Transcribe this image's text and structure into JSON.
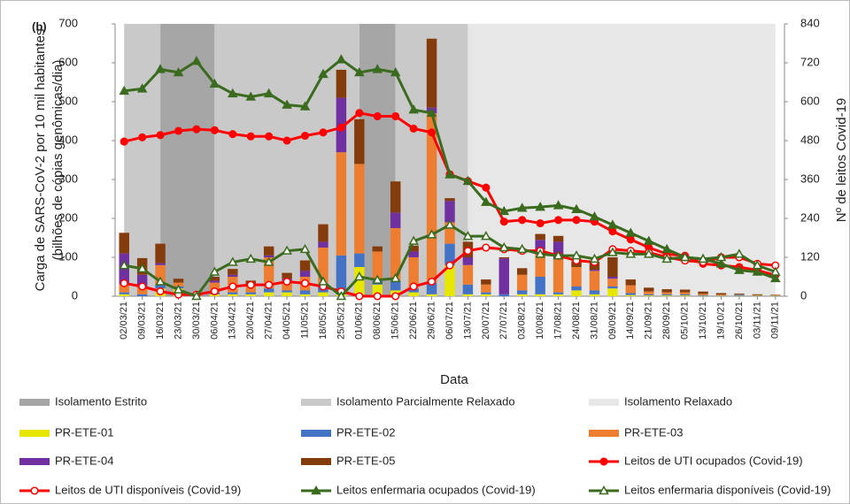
{
  "chart_data": {
    "type": "bar",
    "panel_label": "(b)",
    "xlabel": "Data",
    "ylabel": [
      "Carga de SARS-CoV-2 por 10 mil habitantes",
      "(bilhões de cópias genômicas/dia)"
    ],
    "y2label": "Nº de leitos Covid-19",
    "categories": [
      "02/03/21",
      "09/03/21",
      "16/03/21",
      "23/03/21",
      "30/03/21",
      "06/04/21",
      "13/04/21",
      "20/04/21",
      "27/04/21",
      "04/05/21",
      "11/05/21",
      "18/05/21",
      "25/05/21",
      "01/06/21",
      "08/06/21",
      "15/06/21",
      "22/06/21",
      "29/06/21",
      "06/07/21",
      "13/07/21",
      "20/07/21",
      "27/07/21",
      "03/08/21",
      "10/08/21",
      "17/08/21",
      "24/08/21",
      "31/08/21",
      "09/09/21",
      "14/09/21",
      "21/09/21",
      "28/09/21",
      "05/10/21",
      "13/10/21",
      "19/10/21",
      "26/10/21",
      "03/11/21",
      "09/11/21"
    ],
    "ylim": [
      0,
      700
    ],
    "yticks": [
      0,
      100,
      200,
      300,
      400,
      500,
      600,
      700
    ],
    "y2lim": [
      0,
      840
    ],
    "y2ticks": [
      0,
      120,
      240,
      360,
      480,
      600,
      720,
      840
    ],
    "phases": [
      {
        "name": "Isolamento Estrito",
        "color": "#a6a6a6",
        "spans": [
          [
            "16/03/21",
            "06/04/21"
          ],
          [
            "01/06/21",
            "15/06/21"
          ]
        ]
      },
      {
        "name": "Isolamento Parcialmente Relaxado",
        "color": "#c9c9c9",
        "spans": [
          [
            "02/03/21",
            "16/03/21"
          ],
          [
            "06/04/21",
            "01/06/21"
          ],
          [
            "15/06/21",
            "13/07/21"
          ]
        ]
      },
      {
        "name": "Isolamento Relaxado",
        "color": "#e7e7e7",
        "spans": [
          [
            "13/07/21",
            "09/11/21"
          ]
        ]
      }
    ],
    "series": [
      {
        "name": "PR-ETE-01",
        "type": "bar",
        "color": "#e6e600",
        "values": [
          5,
          0,
          20,
          20,
          0,
          5,
          5,
          5,
          10,
          10,
          5,
          10,
          5,
          75,
          30,
          15,
          10,
          5,
          80,
          5,
          5,
          0,
          5,
          5,
          5,
          15,
          5,
          20,
          3,
          2,
          2,
          2,
          1,
          1,
          1,
          1,
          1
        ]
      },
      {
        "name": "PR-ETE-02",
        "type": "bar",
        "color": "#4472c4",
        "values": [
          5,
          5,
          10,
          5,
          0,
          5,
          5,
          5,
          10,
          5,
          10,
          20,
          100,
          35,
          10,
          25,
          10,
          30,
          55,
          25,
          5,
          5,
          10,
          45,
          5,
          10,
          10,
          5,
          5,
          3,
          3,
          3,
          2,
          1,
          3,
          1,
          1
        ]
      },
      {
        "name": "PR-ETE-03",
        "type": "bar",
        "color": "#ed7d31",
        "values": [
          20,
          20,
          50,
          10,
          3,
          25,
          40,
          20,
          80,
          25,
          35,
          95,
          265,
          230,
          75,
          135,
          80,
          435,
          55,
          50,
          20,
          0,
          40,
          70,
          85,
          50,
          50,
          20,
          20,
          7,
          5,
          5,
          3,
          2,
          1,
          1,
          1
        ]
      },
      {
        "name": "PR-ETE-04",
        "type": "bar",
        "color": "#7030a0",
        "values": [
          80,
          30,
          5,
          0,
          0,
          5,
          5,
          0,
          5,
          5,
          15,
          15,
          140,
          0,
          0,
          40,
          15,
          15,
          55,
          20,
          0,
          92,
          0,
          25,
          45,
          0,
          3,
          5,
          0,
          0,
          0,
          0,
          0,
          0,
          0,
          0,
          0
        ]
      },
      {
        "name": "PR-ETE-05",
        "type": "bar",
        "color": "#843c0c",
        "values": [
          53,
          43,
          50,
          10,
          2,
          10,
          15,
          10,
          23,
          15,
          27,
          45,
          72,
          115,
          13,
          80,
          15,
          177,
          7,
          40,
          13,
          3,
          17,
          15,
          15,
          15,
          20,
          50,
          15,
          10,
          8,
          7,
          6,
          4,
          2,
          2,
          1
        ]
      },
      {
        "name": "Leitos de UTI ocupados (Covid-19)",
        "type": "line",
        "axis": "y2",
        "color": "#ff0000",
        "marker": "circle",
        "marker_filled": true,
        "values": [
          477,
          490,
          497,
          510,
          515,
          512,
          500,
          493,
          493,
          480,
          495,
          505,
          520,
          565,
          555,
          555,
          517,
          505,
          376,
          355,
          335,
          230,
          235,
          225,
          235,
          235,
          230,
          200,
          175,
          150,
          130,
          125,
          100,
          95,
          90,
          80,
          65
        ]
      },
      {
        "name": "Leitos de UTI disponíveis (Covid-19)",
        "type": "line",
        "axis": "y2",
        "color": "#ff0000",
        "marker": "circle",
        "marker_filled": false,
        "values": [
          40,
          30,
          15,
          5,
          5,
          15,
          30,
          35,
          35,
          45,
          40,
          30,
          15,
          0,
          0,
          0,
          30,
          45,
          95,
          140,
          150,
          145,
          140,
          140,
          125,
          110,
          105,
          145,
          140,
          135,
          120,
          110,
          105,
          120,
          120,
          100,
          95
        ]
      },
      {
        "name": "Leitos enfermaria ocupados (Covid-19)",
        "type": "line",
        "axis": "y2",
        "color": "#3a6b1e",
        "marker": "triangle",
        "marker_filled": true,
        "values": [
          633,
          640,
          700,
          690,
          725,
          655,
          625,
          615,
          625,
          590,
          585,
          685,
          730,
          690,
          700,
          690,
          575,
          565,
          375,
          355,
          290,
          262,
          272,
          275,
          280,
          268,
          245,
          220,
          195,
          170,
          145,
          120,
          115,
          100,
          80,
          75,
          55
        ]
      },
      {
        "name": "Leitos enfermaria disponíveis (Covid-19)",
        "type": "line",
        "axis": "y2",
        "color": "#3a6b1e",
        "marker": "triangle",
        "marker_filled": false,
        "values": [
          95,
          85,
          45,
          20,
          0,
          75,
          105,
          115,
          105,
          140,
          145,
          45,
          0,
          60,
          50,
          55,
          170,
          190,
          220,
          185,
          185,
          150,
          145,
          130,
          125,
          125,
          115,
          135,
          130,
          130,
          115,
          120,
          115,
          120,
          130,
          95,
          75
        ]
      }
    ]
  }
}
